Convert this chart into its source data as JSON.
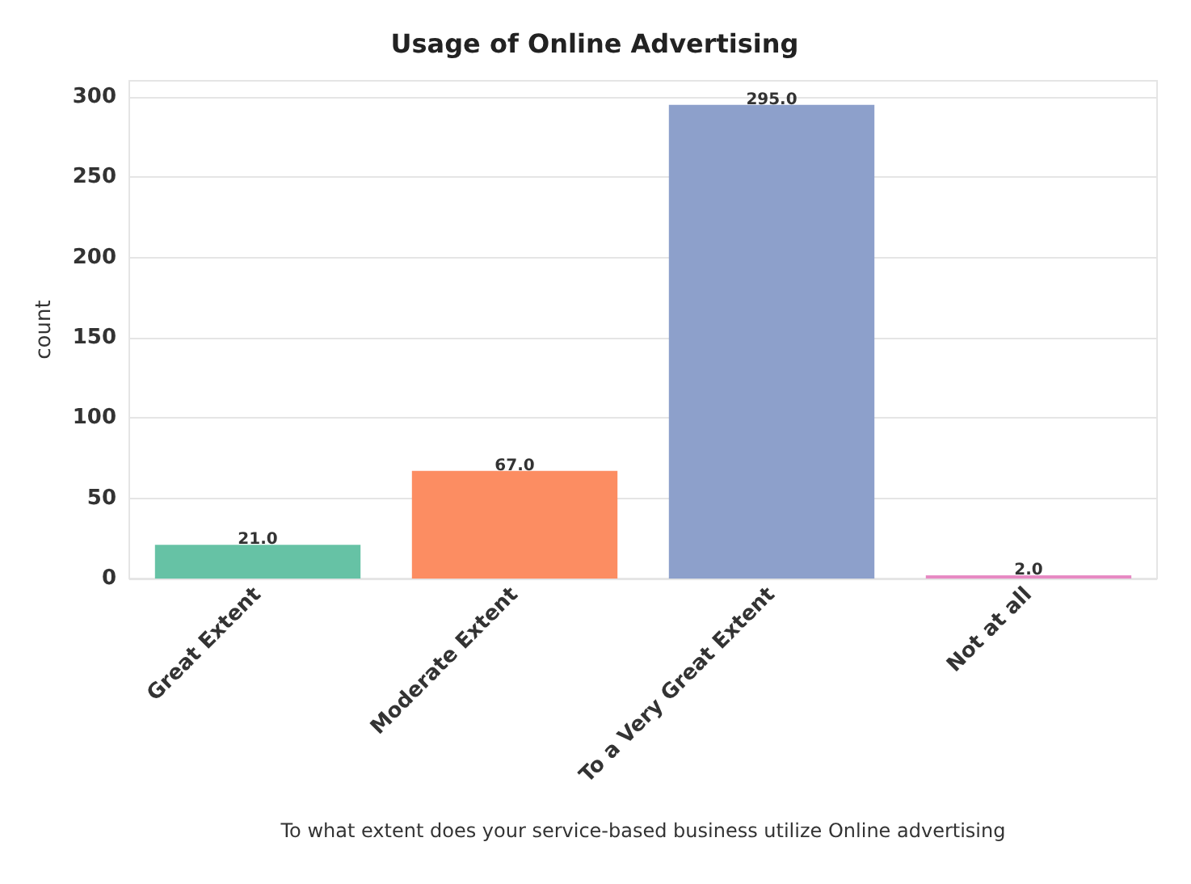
{
  "chart_data": {
    "type": "bar",
    "title": "Usage of Online Advertising",
    "xlabel": "To what extent does your service-based business utilize Online advertising",
    "ylabel": "count",
    "categories": [
      "Great Extent",
      "Moderate Extent",
      "To a Very Great Extent",
      "Not at all"
    ],
    "values": [
      21,
      67,
      295,
      2
    ],
    "colors": [
      "#66c2a5",
      "#fc8d62",
      "#8da0cb",
      "#e78ac3"
    ],
    "value_labels": [
      "21.0",
      "67.0",
      "295.0",
      "2.0"
    ],
    "ylim": [
      0,
      310
    ],
    "yticks": [
      0,
      50,
      100,
      150,
      200,
      250,
      300
    ],
    "grid": "y"
  }
}
